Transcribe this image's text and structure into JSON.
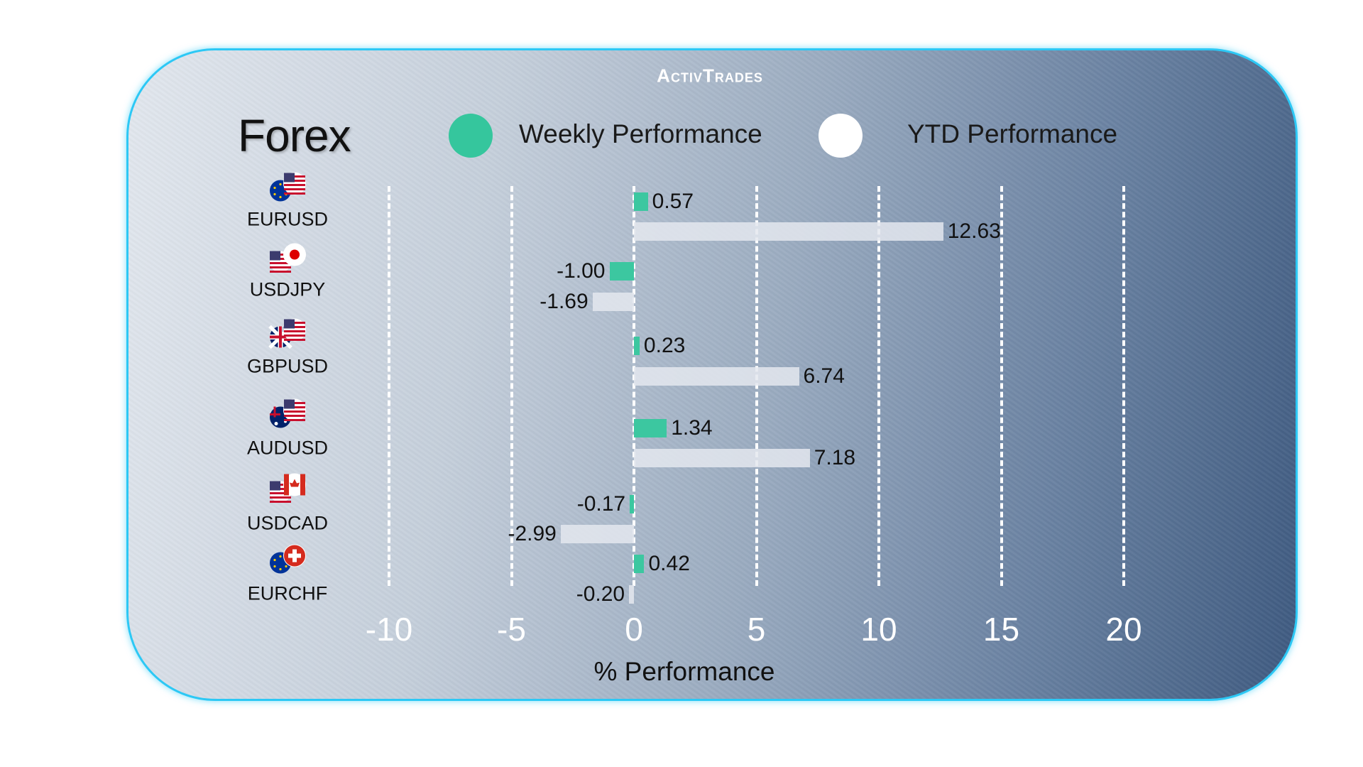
{
  "logo": "ActivTrades",
  "title": "Forex",
  "legend": [
    {
      "label": "Weekly Performance",
      "color": "#35c69d"
    },
    {
      "label": "YTD Performance",
      "color": "#ffffff"
    }
  ],
  "colors": {
    "weekly_bar": "#3cc7a0",
    "ytd_bar": "#e4e8ee",
    "border": "#2cc8f5"
  },
  "chart_data": {
    "type": "bar",
    "orientation": "horizontal",
    "categories": [
      "EURUSD",
      "USDJPY",
      "GBPUSD",
      "AUDUSD",
      "USDCAD",
      "EURCHF"
    ],
    "series": [
      {
        "name": "Weekly Performance",
        "values": [
          0.57,
          -1.0,
          0.23,
          1.34,
          -0.17,
          0.42
        ],
        "labels": [
          "0.57",
          "-1.00",
          "0.23",
          "1.34",
          "-0.17",
          "0.42"
        ]
      },
      {
        "name": "YTD Performance",
        "values": [
          12.63,
          -1.69,
          6.74,
          7.18,
          -2.99,
          -0.2
        ],
        "labels": [
          "12.63",
          "-1.69",
          "6.74",
          "7.18",
          "-2.99",
          "-0.20"
        ]
      }
    ],
    "xlabel": "% Performance",
    "xlim": [
      -10,
      20
    ],
    "xticks": [
      "-10",
      "-5",
      "0",
      "5",
      "10",
      "15",
      "20"
    ],
    "grid": "vertical dashed",
    "legend_position": "top"
  },
  "flags": [
    [
      "eu",
      "us"
    ],
    [
      "us",
      "jp"
    ],
    [
      "gb",
      "us"
    ],
    [
      "au",
      "us"
    ],
    [
      "us",
      "ca"
    ],
    [
      "eu",
      "ch"
    ]
  ]
}
